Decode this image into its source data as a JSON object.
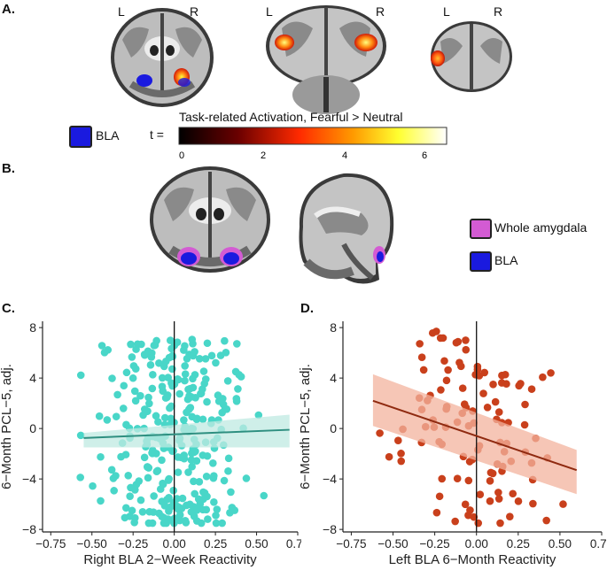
{
  "panels": {
    "a": "A.",
    "b": "B.",
    "c": "C.",
    "d": "D."
  },
  "brain_labels": {
    "left": "L",
    "right": "R"
  },
  "colorbar": {
    "t_label": "t =",
    "title": "Task-related Activation, Fearful > Neutral",
    "ticks": [
      "0",
      "2",
      "4",
      "6"
    ]
  },
  "legend_a": {
    "bla": "BLA",
    "bla_color": "#1a1adf"
  },
  "legend_b": {
    "whole_amygdala": "Whole amygdala",
    "whole_amygdala_color": "#d35bd3",
    "bla": "BLA",
    "bla_color": "#1a1adf"
  },
  "chart_data": [
    {
      "type": "scatter",
      "panel": "C.",
      "xlabel": "Right BLA 2−Week Reactivity",
      "ylabel": "6−Month PCL−5, adj.",
      "xlim": [
        -0.8,
        0.75
      ],
      "ylim": [
        -8.2,
        8.5
      ],
      "xticks": [
        -0.75,
        -0.5,
        -0.25,
        0.0,
        0.25,
        0.5,
        0.75
      ],
      "xtick_labels": [
        "−0.75",
        "−0.50",
        "−0.25",
        "0.00",
        "0.25",
        "0.50",
        "0.75"
      ],
      "yticks": [
        8,
        4,
        0,
        -4,
        -8
      ],
      "ytick_labels": [
        "8",
        "4",
        "0",
        "−4",
        "−8"
      ],
      "point_color": "#49d6c8",
      "line_color": "#2e8f80",
      "band_color": "#bfe9e2",
      "fit": {
        "x0": -0.55,
        "y0": -0.75,
        "x1": 0.7,
        "y1": -0.1
      },
      "band": {
        "upper": [
          -0.35,
          1.1
        ],
        "lower": [
          -1.5,
          -1.5
        ]
      },
      "vline_x": 0.0
    },
    {
      "type": "scatter",
      "panel": "D.",
      "xlabel": "Left BLA 6−Month Reactivity",
      "ylabel": "6−Month PCL−5, adj.",
      "xlim": [
        -0.8,
        0.75
      ],
      "ylim": [
        -8.2,
        8.5
      ],
      "xticks": [
        -0.75,
        -0.5,
        -0.25,
        0.0,
        0.25,
        0.5,
        0.75
      ],
      "xtick_labels": [
        "−0.75",
        "−0.50",
        "−0.25",
        "0.00",
        "0.25",
        "0.50",
        "0.75"
      ],
      "yticks": [
        8,
        4,
        0,
        -4,
        -8
      ],
      "ytick_labels": [
        "8",
        "4",
        "0",
        "−4",
        "−8"
      ],
      "point_color": "#c9401c",
      "line_color": "#8f2a10",
      "band_color": "#f3b39e",
      "fit": {
        "x0": -0.62,
        "y0": 2.2,
        "x1": 0.6,
        "y1": -3.3
      },
      "band": {
        "upper": [
          4.3,
          -1.7
        ],
        "lower": [
          0.2,
          -5.2
        ]
      },
      "vline_x": 0.0
    }
  ]
}
